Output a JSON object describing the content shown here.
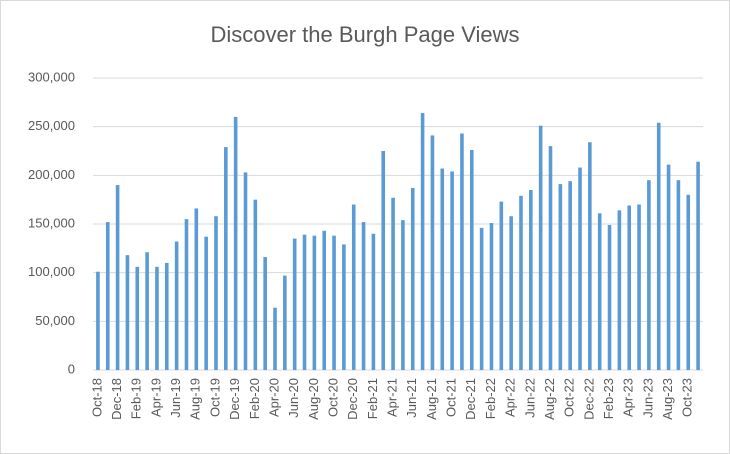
{
  "chart_data": {
    "type": "bar",
    "title": "Discover the Burgh Page Views",
    "categories": [
      "Oct-18",
      null,
      "Dec-18",
      null,
      "Feb-19",
      null,
      "Apr-19",
      null,
      "Jun-19",
      null,
      "Aug-19",
      null,
      "Oct-19",
      null,
      "Dec-19",
      null,
      "Feb-20",
      null,
      "Apr-20",
      null,
      "Jun-20",
      null,
      "Aug-20",
      null,
      "Oct-20",
      null,
      "Dec-20",
      null,
      "Feb-21",
      null,
      "Apr-21",
      null,
      "Jun-21",
      null,
      "Aug-21",
      null,
      "Oct-21",
      null,
      "Dec-21",
      null,
      "Feb-22",
      null,
      "Apr-22",
      null,
      "Jun-22",
      null,
      "Aug-22",
      null,
      "Oct-22",
      null,
      "Dec-22",
      null,
      "Feb-23",
      null,
      "Apr-23",
      null,
      "Jun-23",
      null,
      "Aug-23",
      null,
      "Oct-23",
      null
    ],
    "values": [
      101000,
      152000,
      190000,
      118000,
      106000,
      121000,
      106000,
      110000,
      132000,
      155000,
      166000,
      137000,
      158000,
      229000,
      260000,
      203000,
      175000,
      116000,
      64000,
      97000,
      135000,
      139000,
      138000,
      143000,
      138000,
      129000,
      170000,
      152000,
      140000,
      225000,
      177000,
      154000,
      187000,
      264000,
      241000,
      207000,
      204000,
      243000,
      226000,
      146000,
      151000,
      173000,
      158000,
      179000,
      185000,
      251000,
      230000,
      191000,
      194000,
      208000,
      234000,
      161000,
      149000,
      164000,
      169000,
      170000,
      195000,
      254000,
      211000,
      195000,
      180000,
      214000
    ],
    "color": "#5b9bd5",
    "ylim": [
      0,
      300000
    ],
    "yticks": [
      0,
      {
        "value": 50000,
        "label": "50,000"
      },
      {
        "value": 100000,
        "label": "100,000"
      },
      {
        "value": 150000,
        "label": "150,000"
      },
      {
        "value": 200000,
        "label": "200,000"
      },
      {
        "value": 250000,
        "label": "250,000"
      },
      {
        "value": 300000,
        "label": "300,000"
      }
    ],
    "grid": true
  }
}
